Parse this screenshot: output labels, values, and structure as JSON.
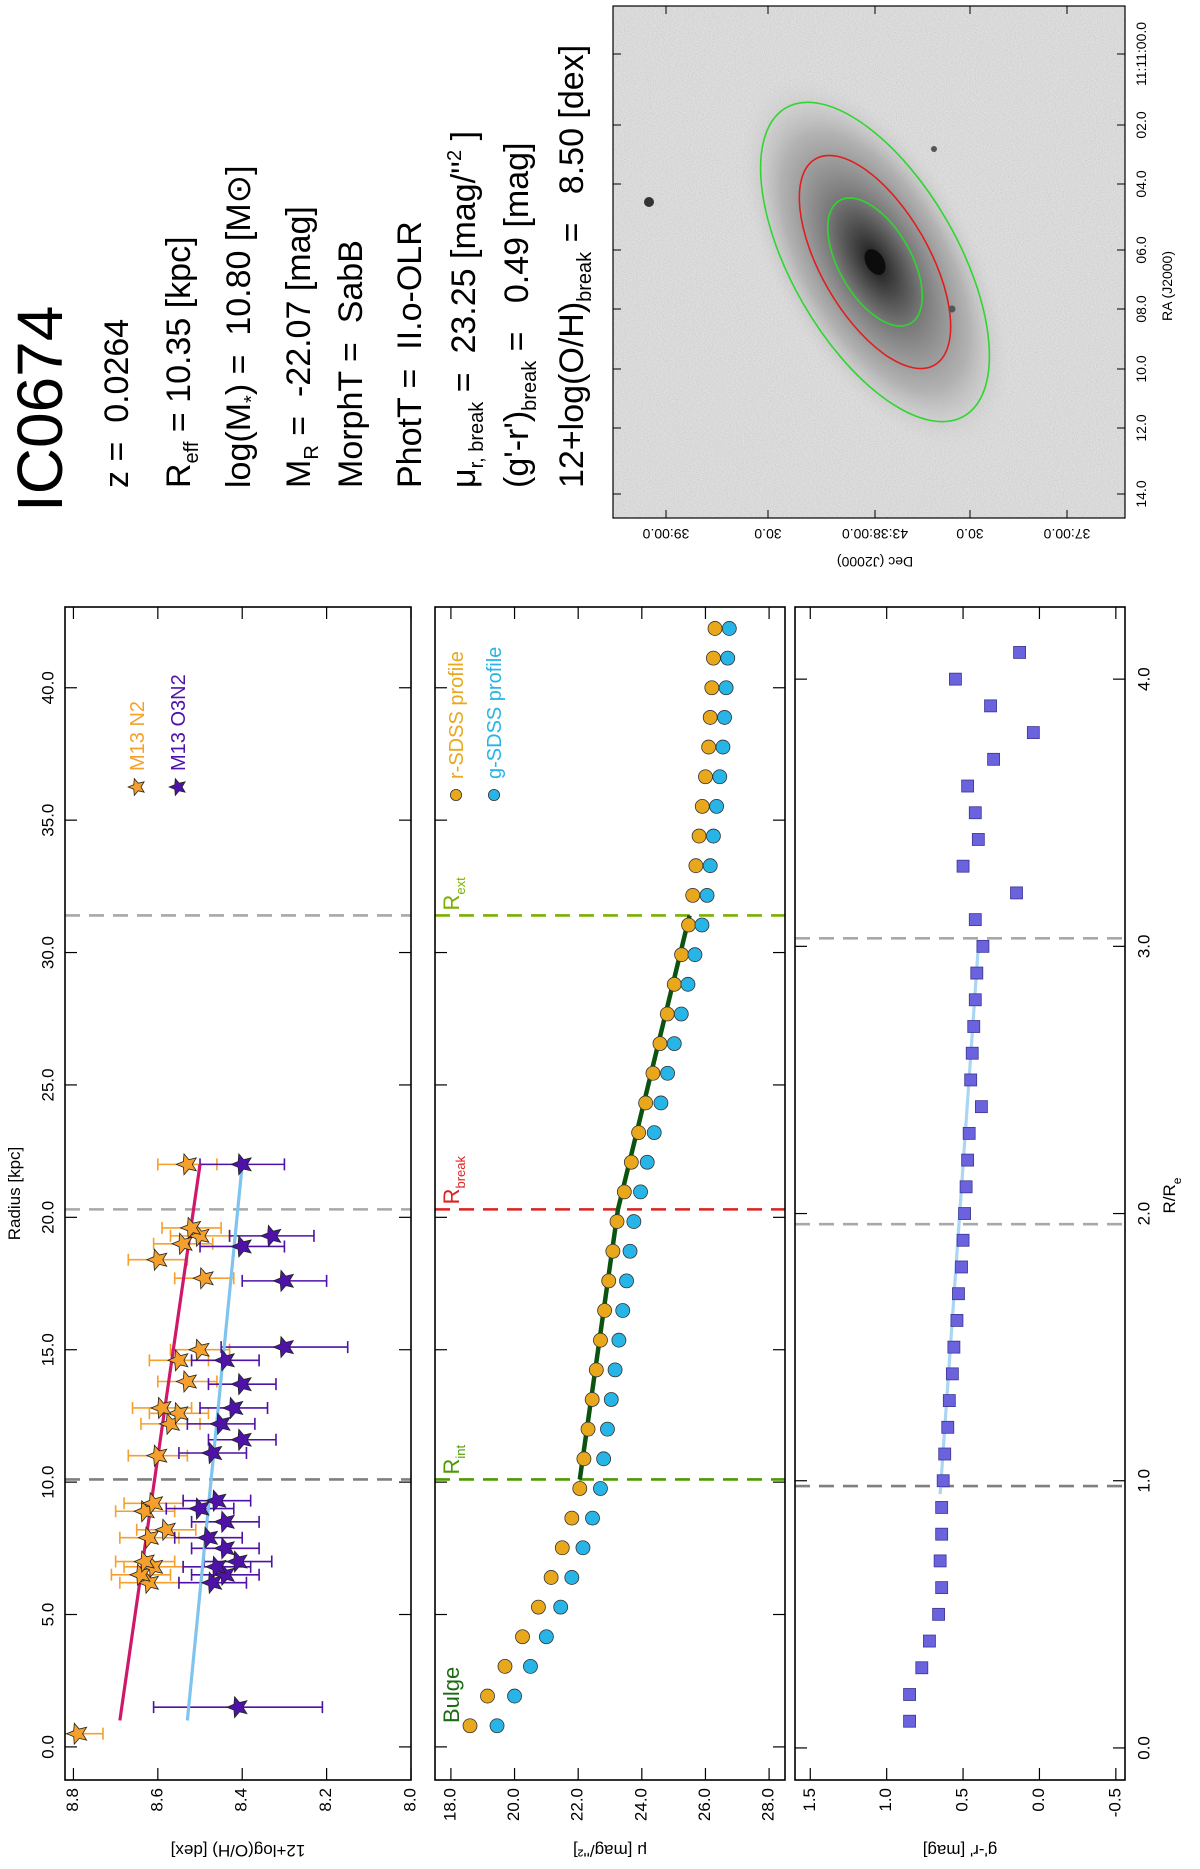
{
  "chart_data": [
    {
      "type": "scatter",
      "xlabel": "Radius [kpc]",
      "xaxis_side": "top",
      "ylabel": "12+log(O/H) [dex]",
      "xlim": [
        -1.25,
        43.05
      ],
      "ylim": [
        8.0,
        8.82
      ],
      "xticks": [
        {
          "value": 0,
          "label": "0.0"
        },
        {
          "value": 5,
          "label": "5.0"
        },
        {
          "value": 10,
          "label": "10.0"
        },
        {
          "value": 15,
          "label": "15.0"
        },
        {
          "value": 20,
          "label": "20.0"
        },
        {
          "value": 25,
          "label": "25.0"
        },
        {
          "value": 30,
          "label": "30.0"
        },
        {
          "value": 35,
          "label": "35.0"
        },
        {
          "value": 40,
          "label": "40.0"
        }
      ],
      "yticks": [
        8.8,
        8.6,
        8.4,
        8.2,
        {
          "value": 8,
          "label": "8.0"
        }
      ],
      "legend": "top right",
      "series": [
        {
          "name": "M13 N2",
          "color": "#f5a02c",
          "marker": "star",
          "x": [
            0.5,
            6.2,
            6.5,
            6.8,
            7.0,
            7.9,
            8.2,
            8.9,
            9.2,
            11.0,
            12.2,
            12.6,
            12.8,
            13.8,
            14.6,
            15.0,
            17.7,
            18.4,
            19.0,
            19.3,
            19.6,
            22.0
          ],
          "values": [
            8.79,
            8.62,
            8.64,
            8.61,
            8.63,
            8.62,
            8.58,
            8.63,
            8.61,
            8.6,
            8.57,
            8.55,
            8.59,
            8.53,
            8.55,
            8.5,
            8.49,
            8.6,
            8.54,
            8.5,
            8.52,
            8.53
          ],
          "errors": [
            0.06,
            0.07,
            0.07,
            0.07,
            0.07,
            0.07,
            0.07,
            0.07,
            0.07,
            0.07,
            0.07,
            0.07,
            0.07,
            0.07,
            0.07,
            0.07,
            0.07,
            0.07,
            0.07,
            0.07,
            0.07,
            0.07
          ]
        },
        {
          "name": "M13 O3N2",
          "color": "#4e12a8",
          "marker": "star",
          "x": [
            1.5,
            6.2,
            6.5,
            6.8,
            7.0,
            7.5,
            7.9,
            8.5,
            9.0,
            9.3,
            11.1,
            11.6,
            12.2,
            12.8,
            13.7,
            14.6,
            15.1,
            17.6,
            18.9,
            19.3,
            22.0
          ],
          "values": [
            8.41,
            8.47,
            8.44,
            8.46,
            8.41,
            8.44,
            8.48,
            8.44,
            8.5,
            8.46,
            8.47,
            8.4,
            8.45,
            8.42,
            8.4,
            8.44,
            8.3,
            8.3,
            8.4,
            8.33,
            8.4
          ],
          "errors": [
            0.2,
            0.08,
            0.08,
            0.08,
            0.08,
            0.08,
            0.08,
            0.08,
            0.08,
            0.08,
            0.08,
            0.08,
            0.08,
            0.08,
            0.08,
            0.08,
            0.15,
            0.1,
            0.1,
            0.1,
            0.1
          ]
        }
      ],
      "fits": [
        {
          "color": "#d0186a",
          "x": [
            1,
            22
          ],
          "y": [
            8.69,
            8.5
          ]
        },
        {
          "color": "#7ec4ee",
          "x": [
            1,
            22
          ],
          "y": [
            8.53,
            8.4
          ]
        }
      ],
      "vlines": [
        {
          "x": 10.1,
          "color": "#808080"
        },
        {
          "x": 20.3,
          "color": "#a8a8a8"
        },
        {
          "x": 31.4,
          "color": "#a8a8a8"
        }
      ]
    },
    {
      "type": "scatter",
      "ylabel": "μ [mag/''²]",
      "yinvert": true,
      "xlim": [
        -1.25,
        43.05
      ],
      "ylim": [
        17.5,
        28.5
      ],
      "xticks": [
        {
          "value": 0,
          "label": "0.0"
        },
        {
          "value": 5,
          "label": "5.0"
        },
        {
          "value": 10,
          "label": "10.0"
        },
        {
          "value": 15,
          "label": "15.0"
        },
        {
          "value": 20,
          "label": "20.0"
        },
        {
          "value": 25,
          "label": "25.0"
        },
        {
          "value": 30,
          "label": "30.0"
        },
        {
          "value": 35,
          "label": "35.0"
        },
        {
          "value": 40,
          "label": "40.0"
        }
      ],
      "yticks": [
        {
          "value": 18,
          "label": "18.0"
        },
        {
          "value": 20,
          "label": "20.0"
        },
        {
          "value": 22,
          "label": "22.0"
        },
        {
          "value": 24,
          "label": "24.0"
        },
        {
          "value": 26,
          "label": "26.0"
        },
        {
          "value": 28,
          "label": "28.0"
        }
      ],
      "legend": "top right",
      "annotation": "Bulge",
      "annotation_color": "#1d6b12",
      "series": [
        {
          "name": "r-SDSS profile",
          "color": "#e9a81c",
          "marker": "circle",
          "x": [
            0.8,
            1.92,
            3.04,
            4.16,
            5.28,
            6.4,
            7.52,
            8.64,
            9.76,
            10.88,
            12.0,
            13.12,
            14.24,
            15.36,
            16.48,
            17.6,
            18.72,
            19.84,
            20.96,
            22.08,
            23.2,
            24.32,
            25.44,
            26.56,
            27.68,
            28.8,
            29.92,
            31.04,
            32.16,
            33.28,
            34.4,
            35.52,
            36.64,
            37.76,
            38.88,
            40.0,
            41.12,
            42.24
          ],
          "values": [
            18.6,
            19.15,
            19.7,
            20.25,
            20.75,
            21.15,
            21.5,
            21.8,
            22.05,
            22.18,
            22.31,
            22.44,
            22.57,
            22.7,
            22.83,
            22.96,
            23.09,
            23.22,
            23.45,
            23.67,
            23.9,
            24.12,
            24.35,
            24.57,
            24.8,
            25.02,
            25.25,
            25.47,
            25.6,
            25.7,
            25.8,
            25.9,
            26.0,
            26.1,
            26.15,
            26.2,
            26.25,
            26.3
          ]
        },
        {
          "name": "g-SDSS profile",
          "color": "#27b4e6",
          "marker": "circle",
          "x": [
            0.8,
            1.92,
            3.04,
            4.16,
            5.28,
            6.4,
            7.52,
            8.64,
            9.76,
            10.88,
            12.0,
            13.12,
            14.24,
            15.36,
            16.48,
            17.6,
            18.72,
            19.84,
            20.96,
            22.08,
            23.2,
            24.32,
            25.44,
            26.56,
            27.68,
            28.8,
            29.92,
            31.04,
            32.16,
            33.28,
            34.4,
            35.52,
            36.64,
            37.76,
            38.88,
            40.0,
            41.12,
            42.24
          ],
          "values": [
            19.45,
            20.0,
            20.5,
            21.0,
            21.45,
            21.8,
            22.15,
            22.45,
            22.7,
            22.8,
            22.92,
            23.04,
            23.16,
            23.28,
            23.4,
            23.52,
            23.63,
            23.75,
            23.96,
            24.17,
            24.39,
            24.6,
            24.81,
            25.02,
            25.24,
            25.45,
            25.67,
            25.89,
            26.05,
            26.15,
            26.25,
            26.35,
            26.45,
            26.55,
            26.6,
            26.65,
            26.7,
            26.75
          ]
        }
      ],
      "fits": [
        {
          "color": "#0b5410",
          "x": [
            10.1,
            20.3,
            31.4
          ],
          "y": [
            22.05,
            23.25,
            25.5
          ]
        }
      ],
      "vlines": [
        {
          "x": 10.1,
          "color": "#4f9a00",
          "text": "R",
          "sub": "int"
        },
        {
          "x": 20.3,
          "color": "#dd2222",
          "text": "R",
          "sub": "break"
        },
        {
          "x": 31.4,
          "color": "#7ab000",
          "text": "R",
          "sub": "ext"
        }
      ]
    },
    {
      "type": "scatter",
      "xlabel": {
        "text": "R/R",
        "sub": "e"
      },
      "xaxis_side": "bottom",
      "ylabel": "g'-r' [mag]",
      "xlim": [
        -0.12,
        4.27
      ],
      "ylim": [
        -0.56,
        1.6
      ],
      "xticks": [
        {
          "value": 0,
          "label": "0.0"
        },
        {
          "value": 1,
          "label": "1.0"
        },
        {
          "value": 2,
          "label": "2.0"
        },
        {
          "value": 3,
          "label": "3.0"
        },
        {
          "value": 4,
          "label": "4.0"
        }
      ],
      "yticks": [
        1.5,
        {
          "value": 1,
          "label": "1.0"
        },
        0.5,
        {
          "value": 0,
          "label": "0.0"
        },
        -0.5
      ],
      "series": [
        {
          "color": "#6b62de",
          "marker": "square",
          "x": [
            0.1,
            0.2,
            0.3,
            0.4,
            0.5,
            0.6,
            0.7,
            0.8,
            0.9,
            1.0,
            1.1,
            1.2,
            1.3,
            1.4,
            1.5,
            1.6,
            1.7,
            1.8,
            1.9,
            2.0,
            2.1,
            2.2,
            2.3,
            2.4,
            2.5,
            2.6,
            2.7,
            2.8,
            2.9,
            3.0,
            3.1,
            3.2,
            3.3,
            3.4,
            3.5,
            3.6,
            3.7,
            3.8,
            3.9,
            4.0,
            4.1
          ],
          "values": [
            0.85,
            0.85,
            0.77,
            0.72,
            0.66,
            0.64,
            0.65,
            0.64,
            0.64,
            0.63,
            0.62,
            0.6,
            0.59,
            0.57,
            0.56,
            0.54,
            0.53,
            0.51,
            0.5,
            0.49,
            0.48,
            0.47,
            0.46,
            0.38,
            0.45,
            0.44,
            0.43,
            0.42,
            0.41,
            0.37,
            0.42,
            0.15,
            0.5,
            0.4,
            0.42,
            0.47,
            0.3,
            0.04,
            0.32,
            0.55,
            0.13
          ]
        }
      ],
      "fits": [
        {
          "color": "#a9d6f2",
          "x": [
            0.95,
            3.0
          ],
          "y": [
            0.65,
            0.4
          ]
        }
      ],
      "vlines": [
        {
          "x": 0.98,
          "color": "#808080"
        },
        {
          "x": 1.96,
          "color": "#a8a8a8"
        },
        {
          "x": 3.03,
          "color": "#a8a8a8"
        }
      ]
    }
  ],
  "info": {
    "title": "IC0674",
    "lines": [
      [
        {
          "text": "z =  0.0264"
        }
      ],
      [
        {
          "text": "R"
        },
        {
          "text": "eff",
          "script": "sub"
        },
        {
          "text": " = 10.35 [kpc]"
        }
      ],
      [
        {
          "text": "log(M"
        },
        {
          "text": "*",
          "script": "sub"
        },
        {
          "text": ") =  10.80 [M⊙]"
        }
      ],
      [
        {
          "text": "M"
        },
        {
          "text": "R",
          "script": "sub"
        },
        {
          "text": " =  -22.07 [mag]"
        }
      ],
      [
        {
          "text": "MorphT =  SabB"
        }
      ],
      [
        {
          "text": "PhotT =  II.o-OLR"
        }
      ],
      [
        {
          "text": "μ"
        },
        {
          "text": "r, break",
          "script": "sub"
        },
        {
          "text": " =  23.25 [mag/''"
        },
        {
          "text": "2",
          "script": "sup"
        },
        {
          "text": " ]"
        }
      ],
      [
        {
          "text": "(g'-r')"
        },
        {
          "text": "break",
          "script": "sub"
        },
        {
          "text": " =   0.49 [mag]"
        }
      ],
      [
        {
          "text": "12+log(O/H)"
        },
        {
          "text": "break",
          "script": "sub"
        },
        {
          "text": " =   8.50 [dex]"
        }
      ]
    ]
  },
  "galaxy_image": {
    "xlabel": "RA (J2000)",
    "ylabel": "Dec (J2000)",
    "xticks": [
      "14.0",
      "12.0",
      "10.0",
      "08.0",
      "06.0",
      "04.0",
      "02.0",
      "11:11:00.0"
    ],
    "yticks": [
      "39:00.0",
      "30.0",
      "43:38:00.0",
      "30.0",
      "37:00.0"
    ]
  }
}
